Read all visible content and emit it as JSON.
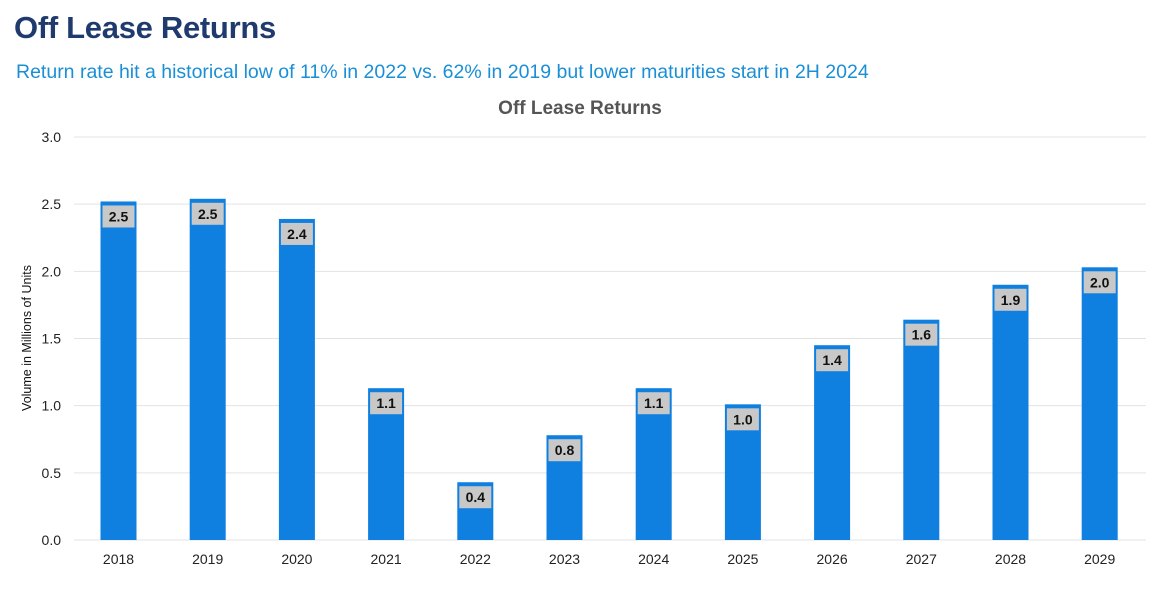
{
  "header": {
    "title": "Off Lease Returns",
    "subtitle": "Return rate hit a historical low of 11% in 2022 vs. 62% in 2019 but lower maturities start in 2H 2024"
  },
  "colors": {
    "title": "#1f3b6e",
    "subtitle": "#1a8fd6",
    "bar": "#0f7fe0",
    "label_box": "#c8c8c8",
    "gridline": "#e3e3e3"
  },
  "chart_data": {
    "type": "bar",
    "title": "Off Lease Returns",
    "xlabel": "",
    "ylabel": "Volume in Millions of Units",
    "categories": [
      "2018",
      "2019",
      "2020",
      "2021",
      "2022",
      "2023",
      "2024",
      "2025",
      "2026",
      "2027",
      "2028",
      "2029"
    ],
    "values": [
      2.52,
      2.54,
      2.39,
      1.13,
      0.43,
      0.78,
      1.13,
      1.01,
      1.45,
      1.64,
      1.9,
      2.03
    ],
    "data_labels": [
      "2.5",
      "2.5",
      "2.4",
      "1.1",
      "0.4",
      "0.8",
      "1.1",
      "1.0",
      "1.4",
      "1.6",
      "1.9",
      "2.0"
    ],
    "yticks": [
      "0.0",
      "0.5",
      "1.0",
      "1.5",
      "2.0",
      "2.5",
      "3.0"
    ],
    "ylim": [
      0,
      3
    ],
    "grid": true,
    "legend": "none"
  }
}
